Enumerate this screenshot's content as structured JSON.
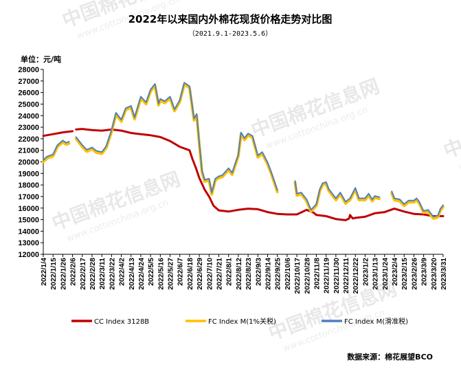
{
  "title": "2022年以来国内外棉花现货价格走势对比图",
  "subtitle": "（2021.9.1-2023.5.6）",
  "unit_label": "单位：元/吨",
  "source": "数据来源：棉花展望BCO",
  "watermark": {
    "text": "中国棉花信息网",
    "url": "www.cottonchina.org.cn"
  },
  "colors": {
    "cc": "#c00000",
    "fc1": "#ffc000",
    "fc2": "#4f81bd",
    "axis": "#000000"
  },
  "chart_data": {
    "type": "line",
    "title": "2022年以来国内外棉花现货价格走势对比图",
    "subtitle": "（2021.9.1-2023.5.6）",
    "ylabel": "单位：元/吨",
    "ylim": [
      12000,
      28000
    ],
    "ystep": 1000,
    "grid": false,
    "legend": "bottom",
    "categories": [
      "2022/1/4",
      "2022/1/15",
      "2022/1/26",
      "2022/2/6",
      "2022/2/17",
      "2022/2/28",
      "2022/3/11",
      "2022/3/22",
      "2022/4/2",
      "2022/4/13",
      "2022/4/24",
      "2022/5/5",
      "2022/5/16",
      "2022/5/27",
      "2022/6/7",
      "2022/6/18",
      "2022/6/29",
      "2022/7/10",
      "2022/7/21",
      "2022/8/1",
      "2022/8/12",
      "2022/8/23",
      "2022/9/3",
      "2022/9/14",
      "2022/9/25",
      "2022/10/6",
      "2022/10/17",
      "2022/10/28",
      "2022/11/8",
      "2022/11/19",
      "2022/11/30",
      "2022/12/11",
      "2022/12/22",
      "2023/1/2",
      "2023/1/13",
      "2023/1/24",
      "2023/2/4",
      "2023/2/15",
      "2023/2/26",
      "2023/3/9",
      "2023/3/20",
      "2023/3/31"
    ],
    "series": [
      {
        "name": "CC Index 3128B",
        "color": "#c00000",
        "points": [
          [
            "2022/1/4",
            22250
          ],
          [
            "2022/1/15",
            22400
          ],
          [
            "2022/1/26",
            22550
          ],
          [
            "2022/2/6",
            22650
          ],
          [
            "2022/2/8",
            null
          ],
          [
            "2022/2/10",
            22800
          ],
          [
            "2022/2/17",
            22850
          ],
          [
            "2022/2/28",
            22750
          ],
          [
            "2022/3/11",
            22700
          ],
          [
            "2022/3/22",
            22800
          ],
          [
            "2022/4/2",
            22700
          ],
          [
            "2022/4/13",
            22500
          ],
          [
            "2022/4/24",
            22400
          ],
          [
            "2022/5/5",
            22300
          ],
          [
            "2022/5/16",
            22150
          ],
          [
            "2022/5/27",
            21800
          ],
          [
            "2022/6/7",
            21300
          ],
          [
            "2022/6/18",
            21000
          ],
          [
            "2022/6/21",
            20300
          ],
          [
            "2022/6/25",
            19500
          ],
          [
            "2022/6/29",
            18600
          ],
          [
            "2022/7/5",
            17600
          ],
          [
            "2022/7/10",
            17000
          ],
          [
            "2022/7/15",
            16200
          ],
          [
            "2022/7/21",
            15800
          ],
          [
            "2022/8/1",
            15700
          ],
          [
            "2022/8/12",
            15850
          ],
          [
            "2022/8/23",
            15950
          ],
          [
            "2022/9/3",
            15900
          ],
          [
            "2022/9/14",
            15650
          ],
          [
            "2022/9/25",
            15500
          ],
          [
            "2022/10/6",
            15450
          ],
          [
            "2022/10/17",
            15450
          ],
          [
            "2022/10/28",
            15850
          ],
          [
            "2022/11/5",
            15600
          ],
          [
            "2022/11/8",
            15400
          ],
          [
            "2022/11/19",
            15300
          ],
          [
            "2022/11/30",
            15050
          ],
          [
            "2022/12/11",
            14950
          ],
          [
            "2022/12/15",
            15100
          ],
          [
            "2022/12/16",
            15400
          ],
          [
            "2022/12/19",
            15100
          ],
          [
            "2022/12/22",
            15150
          ],
          [
            "2023/1/2",
            15250
          ],
          [
            "2023/1/13",
            15550
          ],
          [
            "2023/1/24",
            15650
          ],
          [
            "2023/2/4",
            15950
          ],
          [
            "2023/2/15",
            15700
          ],
          [
            "2023/2/26",
            15500
          ],
          [
            "2023/3/9",
            15450
          ],
          [
            "2023/3/20",
            15300
          ],
          [
            "2023/3/31",
            15300
          ]
        ]
      },
      {
        "name": "FC Index M(1%关税)",
        "color": "#ffc000",
        "points": [
          [
            "2022/1/4",
            20000
          ],
          [
            "2022/1/8",
            20300
          ],
          [
            "2022/1/15",
            20500
          ],
          [
            "2022/1/20",
            21300
          ],
          [
            "2022/1/26",
            21700
          ],
          [
            "2022/1/30",
            21500
          ],
          [
            "2022/2/2",
            21600
          ],
          [
            "2022/2/8",
            null
          ],
          [
            "2022/2/10",
            22000
          ],
          [
            "2022/2/17",
            21300
          ],
          [
            "2022/2/22",
            20900
          ],
          [
            "2022/2/28",
            21100
          ],
          [
            "2022/3/5",
            20800
          ],
          [
            "2022/3/11",
            20700
          ],
          [
            "2022/3/16",
            21200
          ],
          [
            "2022/3/22",
            22600
          ],
          [
            "2022/3/27",
            24100
          ],
          [
            "2022/4/2",
            23500
          ],
          [
            "2022/4/7",
            24500
          ],
          [
            "2022/4/13",
            24700
          ],
          [
            "2022/4/17",
            23700
          ],
          [
            "2022/4/24",
            25500
          ],
          [
            "2022/4/30",
            25000
          ],
          [
            "2022/5/5",
            26100
          ],
          [
            "2022/5/10",
            26600
          ],
          [
            "2022/5/14",
            24900
          ],
          [
            "2022/5/16",
            25300
          ],
          [
            "2022/5/21",
            25100
          ],
          [
            "2022/5/27",
            25500
          ],
          [
            "2022/6/1",
            24400
          ],
          [
            "2022/6/7",
            25200
          ],
          [
            "2022/6/12",
            26700
          ],
          [
            "2022/6/18",
            26400
          ],
          [
            "2022/6/23",
            23600
          ],
          [
            "2022/6/26",
            24000
          ],
          [
            "2022/6/29",
            21500
          ],
          [
            "2022/7/2",
            19100
          ],
          [
            "2022/7/5",
            18300
          ],
          [
            "2022/7/10",
            18400
          ],
          [
            "2022/7/13",
            17200
          ],
          [
            "2022/7/17",
            18400
          ],
          [
            "2022/7/21",
            18600
          ],
          [
            "2022/7/25",
            18700
          ],
          [
            "2022/8/1",
            19300
          ],
          [
            "2022/8/5",
            18900
          ],
          [
            "2022/8/12",
            20500
          ],
          [
            "2022/8/15",
            22400
          ],
          [
            "2022/8/19",
            21900
          ],
          [
            "2022/8/23",
            22300
          ],
          [
            "2022/8/28",
            22100
          ],
          [
            "2022/9/3",
            20400
          ],
          [
            "2022/9/8",
            20700
          ],
          [
            "2022/9/14",
            19800
          ],
          [
            "2022/9/18",
            19000
          ],
          [
            "2022/9/22",
            18100
          ],
          [
            "2022/9/25",
            17400
          ],
          [
            "2022/9/28",
            null
          ],
          [
            "2022/10/13",
            null
          ],
          [
            "2022/10/15",
            18200
          ],
          [
            "2022/10/17",
            17100
          ],
          [
            "2022/10/22",
            17200
          ],
          [
            "2022/10/28",
            16600
          ],
          [
            "2022/11/2",
            15700
          ],
          [
            "2022/11/8",
            16200
          ],
          [
            "2022/11/12",
            17500
          ],
          [
            "2022/11/15",
            18000
          ],
          [
            "2022/11/19",
            18100
          ],
          [
            "2022/11/22",
            17500
          ],
          [
            "2022/11/26",
            17100
          ],
          [
            "2022/11/30",
            16700
          ],
          [
            "2022/12/5",
            17200
          ],
          [
            "2022/12/11",
            16400
          ],
          [
            "2022/12/16",
            16700
          ],
          [
            "2022/12/22",
            17600
          ],
          [
            "2022/12/26",
            16700
          ],
          [
            "2023/1/2",
            16700
          ],
          [
            "2023/1/6",
            17100
          ],
          [
            "2023/1/10",
            16600
          ],
          [
            "2023/1/13",
            16900
          ],
          [
            "2023/1/18",
            16800
          ],
          [
            "2023/1/20",
            null
          ],
          [
            "2023/1/31",
            null
          ],
          [
            "2023/2/1",
            17300
          ],
          [
            "2023/2/4",
            16700
          ],
          [
            "2023/2/10",
            16600
          ],
          [
            "2023/2/15",
            16200
          ],
          [
            "2023/2/20",
            16500
          ],
          [
            "2023/2/26",
            16500
          ],
          [
            "2023/3/1",
            16700
          ],
          [
            "2023/3/4",
            16400
          ],
          [
            "2023/3/9",
            15600
          ],
          [
            "2023/3/14",
            15700
          ],
          [
            "2023/3/20",
            15100
          ],
          [
            "2023/3/25",
            15200
          ],
          [
            "2023/3/28",
            15800
          ],
          [
            "2023/3/31",
            16100
          ]
        ]
      },
      {
        "name": "FC Index M(滑准税)",
        "color": "#4f81bd",
        "points": [
          [
            "2022/1/4",
            20150
          ],
          [
            "2022/1/8",
            20450
          ],
          [
            "2022/1/15",
            20650
          ],
          [
            "2022/1/20",
            21450
          ],
          [
            "2022/1/26",
            21850
          ],
          [
            "2022/1/30",
            21650
          ],
          [
            "2022/2/2",
            21750
          ],
          [
            "2022/2/8",
            null
          ],
          [
            "2022/2/10",
            22150
          ],
          [
            "2022/2/17",
            21450
          ],
          [
            "2022/2/22",
            21050
          ],
          [
            "2022/2/28",
            21250
          ],
          [
            "2022/3/5",
            20950
          ],
          [
            "2022/3/11",
            20850
          ],
          [
            "2022/3/16",
            21350
          ],
          [
            "2022/3/22",
            22750
          ],
          [
            "2022/3/27",
            24250
          ],
          [
            "2022/4/2",
            23650
          ],
          [
            "2022/4/7",
            24650
          ],
          [
            "2022/4/13",
            24850
          ],
          [
            "2022/4/17",
            23850
          ],
          [
            "2022/4/24",
            25650
          ],
          [
            "2022/4/30",
            25150
          ],
          [
            "2022/5/5",
            26250
          ],
          [
            "2022/5/10",
            26750
          ],
          [
            "2022/5/14",
            25050
          ],
          [
            "2022/5/16",
            25450
          ],
          [
            "2022/5/21",
            25250
          ],
          [
            "2022/5/27",
            25650
          ],
          [
            "2022/6/1",
            24550
          ],
          [
            "2022/6/7",
            25350
          ],
          [
            "2022/6/12",
            26850
          ],
          [
            "2022/6/18",
            26550
          ],
          [
            "2022/6/23",
            23750
          ],
          [
            "2022/6/26",
            24150
          ],
          [
            "2022/6/29",
            21650
          ],
          [
            "2022/7/2",
            19250
          ],
          [
            "2022/7/5",
            18450
          ],
          [
            "2022/7/10",
            18550
          ],
          [
            "2022/7/13",
            17350
          ],
          [
            "2022/7/17",
            18550
          ],
          [
            "2022/7/21",
            18750
          ],
          [
            "2022/7/25",
            18850
          ],
          [
            "2022/8/1",
            19450
          ],
          [
            "2022/8/5",
            19050
          ],
          [
            "2022/8/12",
            20650
          ],
          [
            "2022/8/15",
            22550
          ],
          [
            "2022/8/19",
            22050
          ],
          [
            "2022/8/23",
            22450
          ],
          [
            "2022/8/28",
            22250
          ],
          [
            "2022/9/3",
            20550
          ],
          [
            "2022/9/8",
            20850
          ],
          [
            "2022/9/14",
            19950
          ],
          [
            "2022/9/18",
            19150
          ],
          [
            "2022/9/22",
            18250
          ],
          [
            "2022/9/25",
            17550
          ],
          [
            "2022/9/28",
            null
          ],
          [
            "2022/10/13",
            null
          ],
          [
            "2022/10/15",
            18350
          ],
          [
            "2022/10/17",
            17250
          ],
          [
            "2022/10/22",
            17350
          ],
          [
            "2022/10/28",
            16750
          ],
          [
            "2022/11/2",
            15850
          ],
          [
            "2022/11/8",
            16350
          ],
          [
            "2022/11/12",
            17650
          ],
          [
            "2022/11/15",
            18150
          ],
          [
            "2022/11/19",
            18250
          ],
          [
            "2022/11/22",
            17650
          ],
          [
            "2022/11/26",
            17250
          ],
          [
            "2022/11/30",
            16850
          ],
          [
            "2022/12/5",
            17350
          ],
          [
            "2022/12/11",
            16550
          ],
          [
            "2022/12/16",
            16850
          ],
          [
            "2022/12/22",
            17750
          ],
          [
            "2022/12/26",
            16850
          ],
          [
            "2023/1/2",
            16850
          ],
          [
            "2023/1/6",
            17250
          ],
          [
            "2023/1/10",
            16750
          ],
          [
            "2023/1/13",
            17050
          ],
          [
            "2023/1/18",
            16950
          ],
          [
            "2023/1/20",
            null
          ],
          [
            "2023/1/31",
            null
          ],
          [
            "2023/2/1",
            17450
          ],
          [
            "2023/2/4",
            16850
          ],
          [
            "2023/2/10",
            16750
          ],
          [
            "2023/2/15",
            16350
          ],
          [
            "2023/2/20",
            16650
          ],
          [
            "2023/2/26",
            16650
          ],
          [
            "2023/3/1",
            16850
          ],
          [
            "2023/3/4",
            16550
          ],
          [
            "2023/3/9",
            15750
          ],
          [
            "2023/3/14",
            15850
          ],
          [
            "2023/3/20",
            15250
          ],
          [
            "2023/3/25",
            15350
          ],
          [
            "2023/3/28",
            15950
          ],
          [
            "2023/3/31",
            16250
          ]
        ]
      }
    ]
  }
}
